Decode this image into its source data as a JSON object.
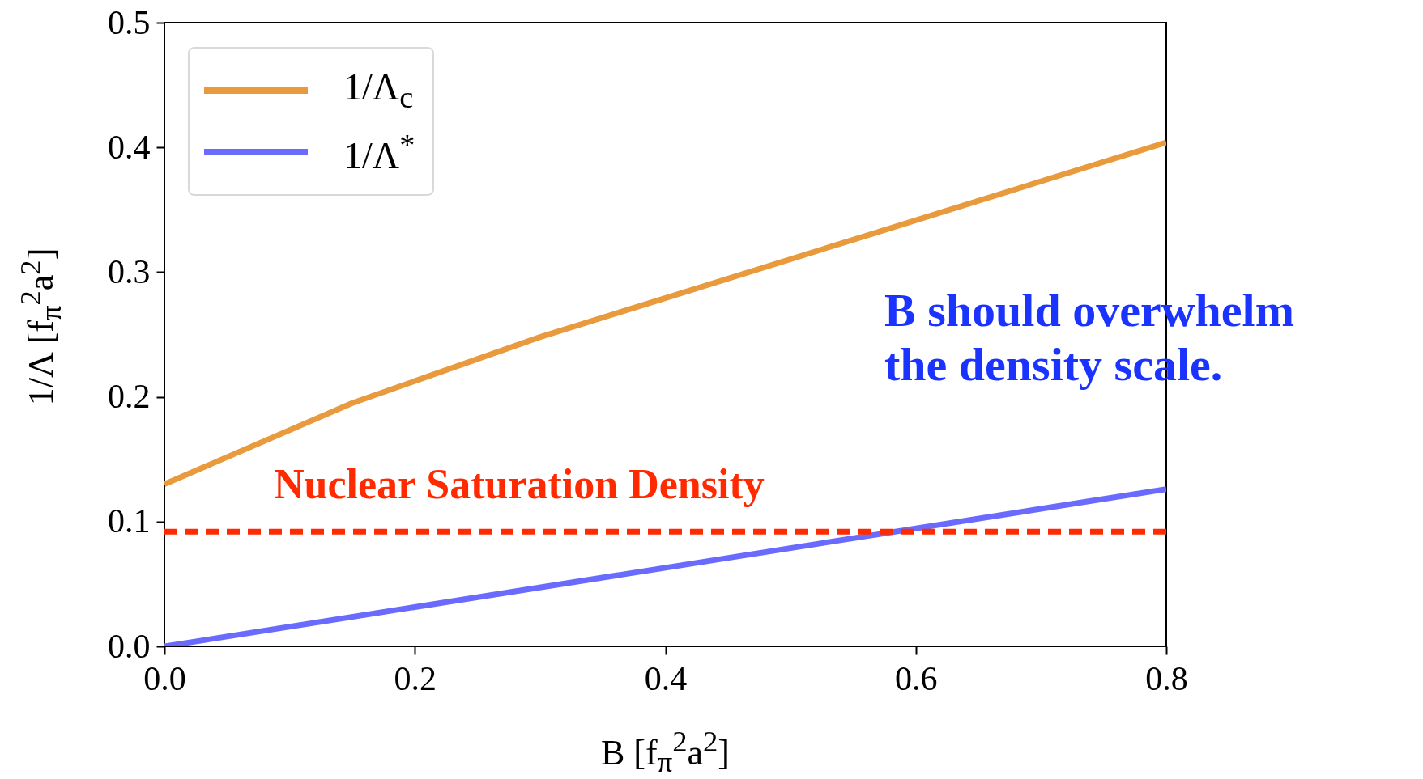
{
  "chart_data": {
    "type": "line",
    "xlabel": "B  [f$_{π}$$^{2}$a$^{2}$]",
    "ylabel": "1/Λ  [f$_{π}$$^{2}$a$^{2}$]",
    "series": [
      {
        "name": "1/Λ$_{c}$",
        "color": "#e89a3c",
        "x": [
          0,
          0.15,
          0.3,
          0.55,
          0.8
        ],
        "values": [
          0.13,
          0.195,
          0.248,
          0.326,
          0.404
        ]
      },
      {
        "name": "1/Λ$^{*}$",
        "color": "#6a6aff",
        "x": [
          0,
          0.8
        ],
        "values": [
          0.0,
          0.126
        ]
      }
    ],
    "xlim": [
      0,
      0.8
    ],
    "ylim": [
      0,
      0.5
    ],
    "xticks": [
      {
        "value": 0,
        "label": "0.0"
      },
      0.2,
      0.4,
      0.6,
      0.8
    ],
    "yticks": [
      {
        "value": 0,
        "label": "0.0"
      },
      0.1,
      0.2,
      0.3,
      0.4,
      0.5
    ],
    "ref_lines": [
      {
        "axis": "y",
        "value": 0.092,
        "label": "Nuclear Saturation Density",
        "color": "#ff2a00",
        "line_style": "dashed"
      }
    ],
    "annotations": [
      "B should overwhelm the density scale."
    ],
    "legend": "top left",
    "grid": false
  }
}
